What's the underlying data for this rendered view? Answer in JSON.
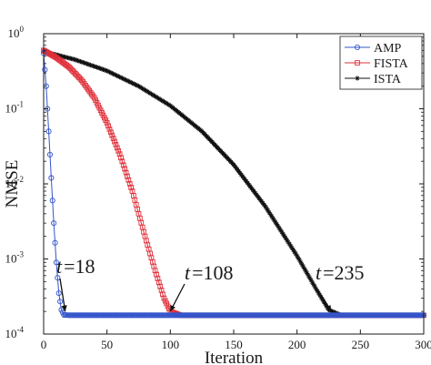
{
  "chart_data": {
    "type": "line",
    "xlabel": "Iteration",
    "ylabel": "NMSE",
    "xlim": [
      0,
      300
    ],
    "ylim": [
      0.0001,
      1
    ],
    "yscale": "log",
    "x_ticks": [
      "0",
      "50",
      "100",
      "150",
      "200",
      "250",
      "300"
    ],
    "y_ticks": [
      {
        "base": "10",
        "exp": "0"
      },
      {
        "base": "10",
        "exp": "-1"
      },
      {
        "base": "10",
        "exp": "-2"
      },
      {
        "base": "10",
        "exp": "-3"
      },
      {
        "base": "10",
        "exp": "-4"
      }
    ],
    "grid": false,
    "legend_position": "top-right",
    "series": [
      {
        "name": "AMP",
        "color": "#3355cc",
        "marker": "circle",
        "points": [
          [
            0,
            0.55
          ],
          [
            2,
            0.2
          ],
          [
            4,
            0.05
          ],
          [
            6,
            0.012
          ],
          [
            8,
            0.003
          ],
          [
            10,
            0.0009
          ],
          [
            12,
            0.00035
          ],
          [
            14,
            0.00021
          ],
          [
            16,
            0.00018
          ],
          [
            20,
            0.000178
          ],
          [
            300,
            0.000178
          ]
        ]
      },
      {
        "name": "FISTA",
        "color": "#e0303a",
        "marker": "square",
        "points": [
          [
            0,
            0.6
          ],
          [
            10,
            0.48
          ],
          [
            20,
            0.36
          ],
          [
            30,
            0.24
          ],
          [
            40,
            0.14
          ],
          [
            50,
            0.065
          ],
          [
            60,
            0.025
          ],
          [
            70,
            0.008
          ],
          [
            80,
            0.002
          ],
          [
            88,
            0.0007
          ],
          [
            95,
            0.0003
          ],
          [
            100,
            0.0002
          ],
          [
            108,
            0.000178
          ],
          [
            300,
            0.000178
          ]
        ]
      },
      {
        "name": "ISTA",
        "color": "#111111",
        "marker": "star",
        "points": [
          [
            0,
            0.58
          ],
          [
            25,
            0.45
          ],
          [
            50,
            0.32
          ],
          [
            75,
            0.2
          ],
          [
            100,
            0.11
          ],
          [
            125,
            0.05
          ],
          [
            150,
            0.018
          ],
          [
            175,
            0.005
          ],
          [
            200,
            0.0011
          ],
          [
            215,
            0.0004
          ],
          [
            225,
            0.00021
          ],
          [
            235,
            0.000178
          ],
          [
            300,
            0.000178
          ]
        ]
      }
    ],
    "annotations": [
      {
        "var": "t",
        "eq": "=",
        "value": "18",
        "target": [
          17,
          0.000185
        ]
      },
      {
        "var": "t",
        "eq": "=",
        "value": "108",
        "target": [
          100,
          0.000185
        ]
      },
      {
        "var": "t",
        "eq": "=",
        "value": "235",
        "target": [
          227,
          0.000185
        ]
      }
    ]
  }
}
